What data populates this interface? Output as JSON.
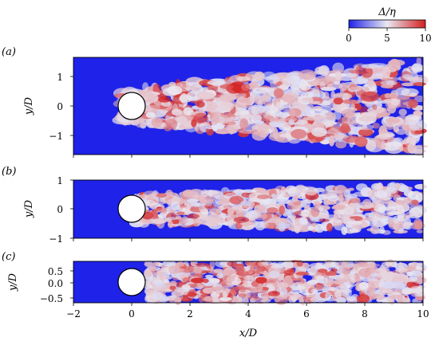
{
  "colorbar": {
    "label": "Δ/η",
    "ticks": [
      "0",
      "5",
      "10"
    ],
    "colors": {
      "low": "#1f22e8",
      "mid": "#e9e9f3",
      "high": "#d41f1f"
    }
  },
  "x_axis": {
    "label": "x/D",
    "ticks": [
      "−2",
      "0",
      "2",
      "4",
      "6",
      "8",
      "10"
    ]
  },
  "chart_data": [
    {
      "type": "heatmap",
      "panel": "(a)",
      "xlim": [
        -2,
        10
      ],
      "ylim": [
        -1.65,
        1.65
      ],
      "ylabel": "y/D",
      "yticks": [
        "1",
        "0",
        "−1"
      ],
      "cylinder": {
        "x": 0,
        "y": 0,
        "diameter": 1
      },
      "xlabel": ""
    },
    {
      "type": "heatmap",
      "panel": "(b)",
      "xlim": [
        -2,
        10
      ],
      "ylim": [
        -1,
        1
      ],
      "ylabel": "y/D",
      "yticks": [
        "1",
        "0",
        "−1"
      ],
      "cylinder": {
        "x": 0,
        "y": 0,
        "diameter": 1
      },
      "xlabel": ""
    },
    {
      "type": "heatmap",
      "panel": "(c)",
      "xlim": [
        -2,
        10
      ],
      "ylim": [
        -0.72,
        0.72
      ],
      "ylabel": "y/D",
      "yticks": [
        "0.5",
        "0.0",
        "−0.5"
      ],
      "cylinder": {
        "x": 0,
        "y": 0,
        "diameter": 1
      },
      "xlabel": "x/D"
    }
  ]
}
